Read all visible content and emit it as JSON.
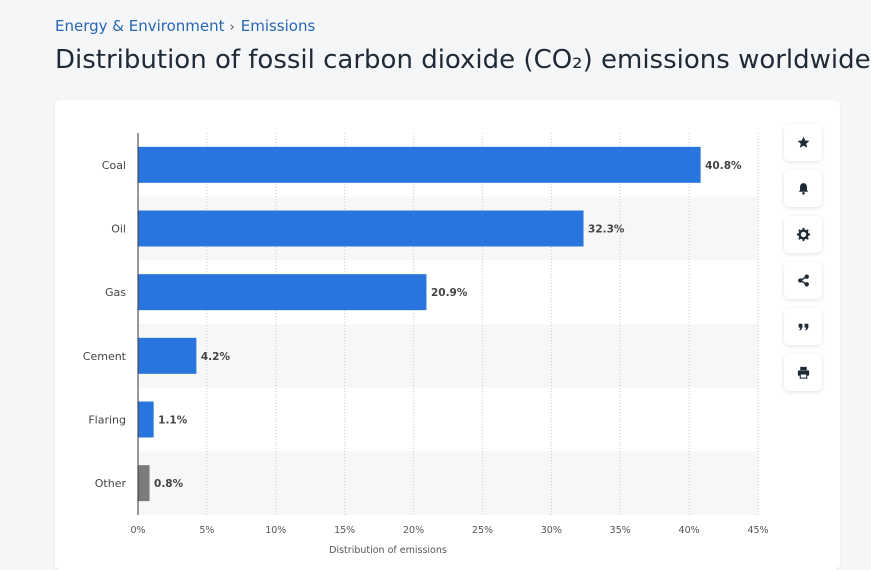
{
  "breadcrumb": {
    "items": [
      "Energy & Environment",
      "Emissions"
    ],
    "separator": "›"
  },
  "page_title": "Distribution of fossil carbon dioxide (CO₂) emissions worldwide",
  "toolbar": {
    "buttons": [
      {
        "icon": "star-icon"
      },
      {
        "icon": "bell-icon"
      },
      {
        "icon": "gear-icon"
      },
      {
        "icon": "share-icon"
      },
      {
        "icon": "quote-icon"
      },
      {
        "icon": "print-icon"
      }
    ],
    "icon_color": "#1f2a37"
  },
  "chart_data": {
    "type": "bar",
    "orientation": "horizontal",
    "categories": [
      "Coal",
      "Oil",
      "Gas",
      "Cement",
      "Flaring",
      "Other"
    ],
    "values": [
      40.8,
      32.3,
      20.9,
      4.2,
      1.1,
      0.8
    ],
    "value_labels": [
      "40.8%",
      "32.3%",
      "20.9%",
      "4.2%",
      "1.1%",
      "0.8%"
    ],
    "colors": [
      "#2876dd",
      "#2876dd",
      "#2876dd",
      "#2876dd",
      "#2876dd",
      "#7b7b7b"
    ],
    "xlabel": "Distribution of emissions",
    "ylabel": "",
    "xlim": [
      0,
      45
    ],
    "xticks": [
      0,
      5,
      10,
      15,
      20,
      25,
      30,
      35,
      40,
      45
    ],
    "xtick_labels": [
      "0%",
      "5%",
      "10%",
      "15%",
      "20%",
      "25%",
      "30%",
      "35%",
      "40%",
      "45%"
    ],
    "grid": true,
    "grid_style": "dotted vertical",
    "band_color": "#f7f7f7",
    "legend": "none"
  }
}
